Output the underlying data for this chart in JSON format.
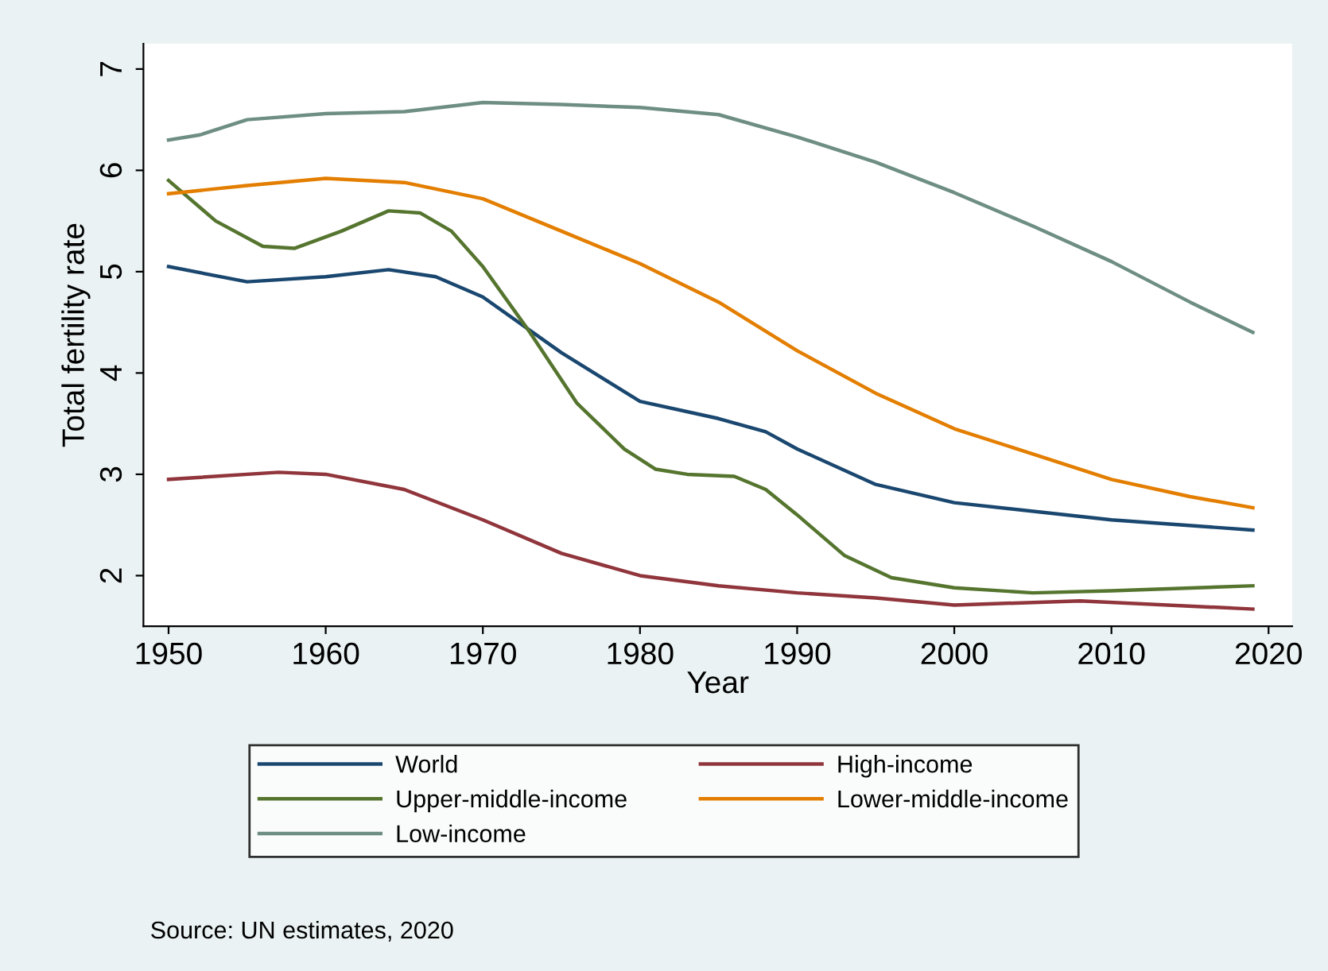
{
  "chart_data": {
    "type": "line",
    "xlabel": "Year",
    "ylabel": "Total fertility rate",
    "xlim": [
      1948.4,
      2021.5
    ],
    "ylim": [
      1.5,
      7.25
    ],
    "xticks": [
      1950,
      1960,
      1970,
      1980,
      1990,
      2000,
      2010,
      2020
    ],
    "yticks": [
      2,
      3,
      4,
      5,
      6,
      7
    ],
    "grid": false,
    "legend": "bottom",
    "marker": "none",
    "line_style": "solid",
    "annotations": [
      "Source: UN estimates, 2020"
    ],
    "series": [
      {
        "name": "World",
        "color": "#1a476f",
        "x": [
          1950,
          1955,
          1960,
          1964,
          1967,
          1970,
          1975,
          1980,
          1985,
          1988,
          1990,
          1995,
          2000,
          2010,
          2019
        ],
        "values": [
          5.05,
          4.9,
          4.95,
          5.02,
          4.95,
          4.75,
          4.2,
          3.72,
          3.55,
          3.42,
          3.25,
          2.9,
          2.72,
          2.55,
          2.45
        ]
      },
      {
        "name": "High-income",
        "color": "#90353b",
        "x": [
          1950,
          1957,
          1960,
          1965,
          1970,
          1975,
          1980,
          1985,
          1990,
          1995,
          2000,
          2008,
          2019
        ],
        "values": [
          2.95,
          3.02,
          3.0,
          2.85,
          2.55,
          2.22,
          2.0,
          1.9,
          1.83,
          1.78,
          1.71,
          1.75,
          1.67
        ]
      },
      {
        "name": "Upper-middle-income",
        "color": "#55752f",
        "x": [
          1950,
          1953,
          1956,
          1958,
          1961,
          1964,
          1966,
          1968,
          1970,
          1973,
          1976,
          1979,
          1981,
          1983,
          1986,
          1988,
          1990,
          1993,
          1996,
          2000,
          2005,
          2010,
          2019
        ],
        "values": [
          5.9,
          5.5,
          5.25,
          5.23,
          5.4,
          5.6,
          5.58,
          5.4,
          5.05,
          4.4,
          3.7,
          3.25,
          3.05,
          3.0,
          2.98,
          2.85,
          2.6,
          2.2,
          1.98,
          1.88,
          1.83,
          1.85,
          1.9
        ]
      },
      {
        "name": "Lower-middle-income",
        "color": "#e37e00",
        "x": [
          1950,
          1955,
          1960,
          1965,
          1970,
          1975,
          1980,
          1985,
          1990,
          1995,
          2000,
          2005,
          2010,
          2015,
          2019
        ],
        "values": [
          5.77,
          5.85,
          5.92,
          5.88,
          5.72,
          5.4,
          5.08,
          4.7,
          4.22,
          3.8,
          3.45,
          3.2,
          2.95,
          2.78,
          2.67
        ]
      },
      {
        "name": "Low-income",
        "color": "#6e8e84",
        "x": [
          1950,
          1952,
          1955,
          1960,
          1965,
          1970,
          1975,
          1980,
          1985,
          1990,
          1995,
          2000,
          2005,
          2010,
          2015,
          2019
        ],
        "values": [
          6.3,
          6.35,
          6.5,
          6.56,
          6.58,
          6.67,
          6.65,
          6.62,
          6.55,
          6.33,
          6.08,
          5.78,
          5.45,
          5.1,
          4.7,
          4.4
        ]
      }
    ]
  }
}
